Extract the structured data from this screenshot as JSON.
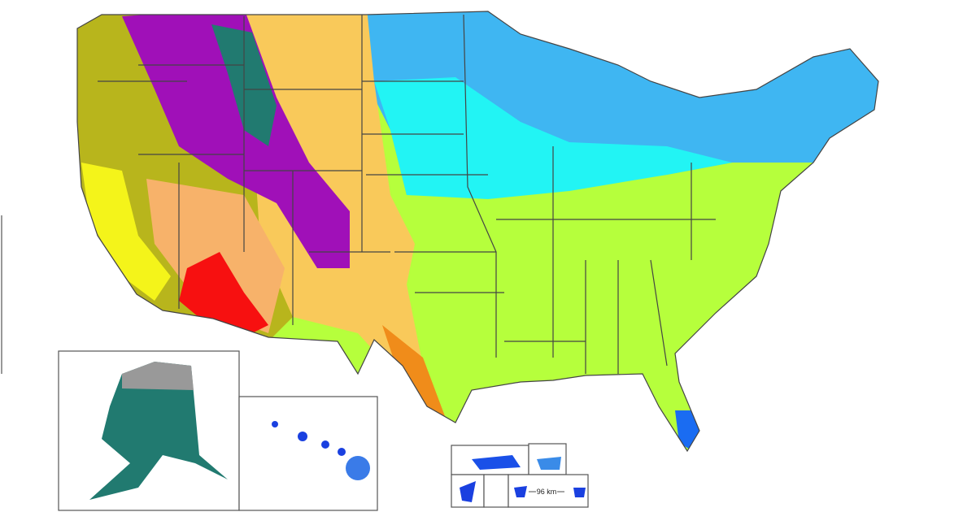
{
  "scale_label": "96 km"
}
